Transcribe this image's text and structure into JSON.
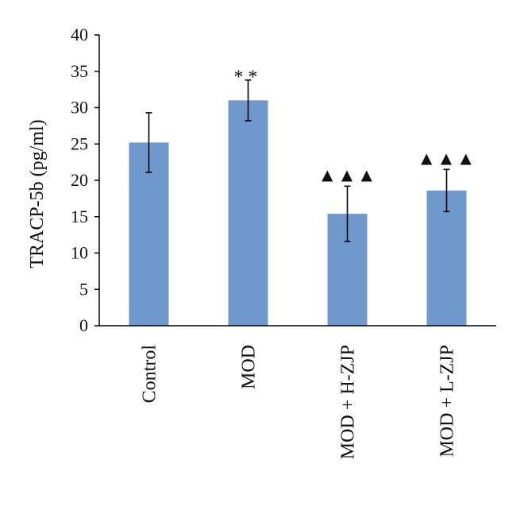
{
  "chart_data": {
    "type": "bar",
    "ylabel": "TRACP-5b (pg/ml)",
    "ylim": [
      0,
      40
    ],
    "yticks": [
      0,
      5,
      10,
      15,
      20,
      25,
      30,
      35,
      40
    ],
    "categories": [
      "Control",
      "MOD",
      "MOD + H-ZJP",
      "MOD + L-ZJP"
    ],
    "values": [
      25.2,
      31.0,
      15.4,
      18.6
    ],
    "errors": [
      4.1,
      2.8,
      3.8,
      2.9
    ],
    "annotations": [
      "",
      "**",
      "▲▲▲",
      "▲▲▲"
    ],
    "bar_color": "#6f98cc",
    "grid": false
  }
}
